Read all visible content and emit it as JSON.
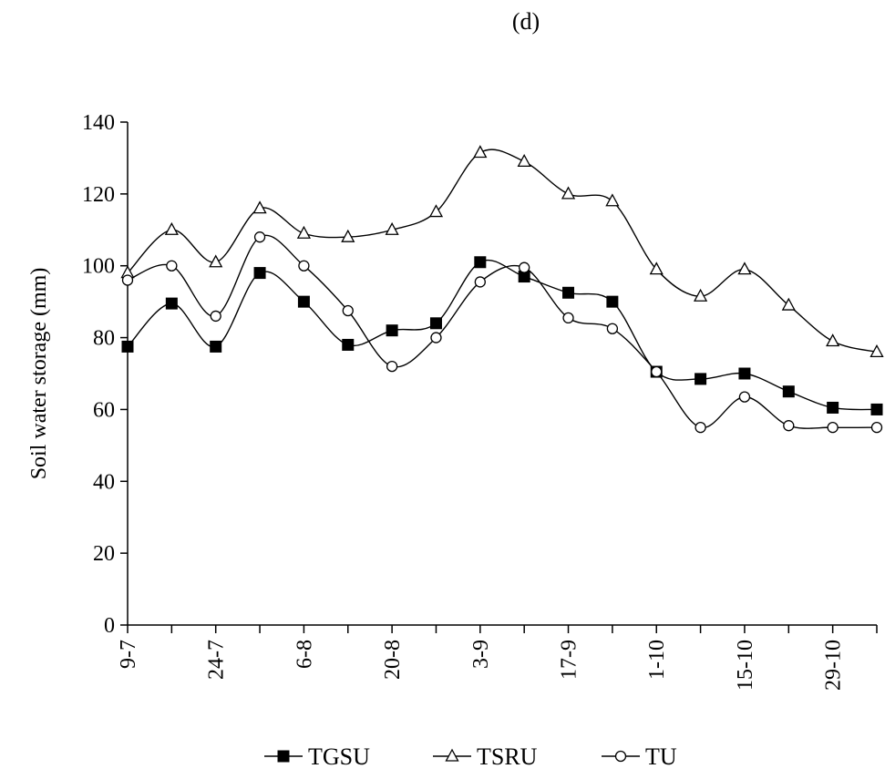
{
  "panel_label": "(d)",
  "chart_data": {
    "type": "line",
    "title": "",
    "xlabel": "",
    "ylabel": "Soil water storage (mm)",
    "ylim": [
      0,
      140
    ],
    "yticks": [
      0,
      20,
      40,
      60,
      80,
      100,
      120,
      140
    ],
    "grid": false,
    "legend_position": "bottom-center",
    "x": [
      "9-7",
      "",
      "24-7",
      "",
      "6-8",
      "",
      "20-8",
      "",
      "3-9",
      "",
      "17-9",
      "",
      "1-10",
      "",
      "15-10",
      "",
      "29-10",
      ""
    ],
    "series": [
      {
        "name": "TGSU",
        "marker": "filled-square",
        "values": [
          77.5,
          89.5,
          77.5,
          98,
          90,
          78,
          82,
          84,
          101,
          97,
          92.5,
          90,
          70.5,
          68.5,
          70,
          65,
          60.5,
          60
        ]
      },
      {
        "name": "TSRU",
        "marker": "open-triangle",
        "values": [
          98,
          110,
          101,
          116,
          109,
          108,
          110,
          115,
          131.5,
          129,
          120,
          118,
          99,
          91.5,
          99,
          89,
          79,
          76
        ]
      },
      {
        "name": "TU",
        "marker": "open-circle",
        "values": [
          96,
          100,
          86,
          108,
          100,
          87.5,
          72,
          80,
          95.5,
          99.5,
          85.5,
          82.5,
          70.5,
          55,
          63.5,
          55.5,
          55,
          55
        ]
      }
    ]
  }
}
